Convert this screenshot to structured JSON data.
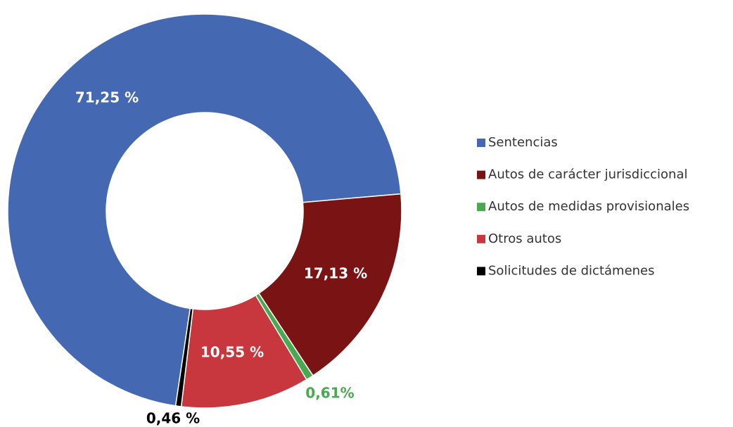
{
  "chart_data": {
    "type": "donut",
    "categories": [
      "Sentencias",
      "Autos de carácter jurisdiccional",
      "Autos de medidas provisionales",
      "Otros autos",
      "Solicitudes de dictámenes"
    ],
    "values": [
      71.25,
      17.13,
      0.61,
      10.55,
      0.46
    ],
    "value_labels": [
      "71,25 %",
      "17,13 %",
      "0,61%",
      "10,55 %",
      "0,46 %"
    ],
    "colors": [
      "#4468b1",
      "#7a1414",
      "#4aa84f",
      "#c8373e",
      "#000000"
    ],
    "legend": "right"
  }
}
